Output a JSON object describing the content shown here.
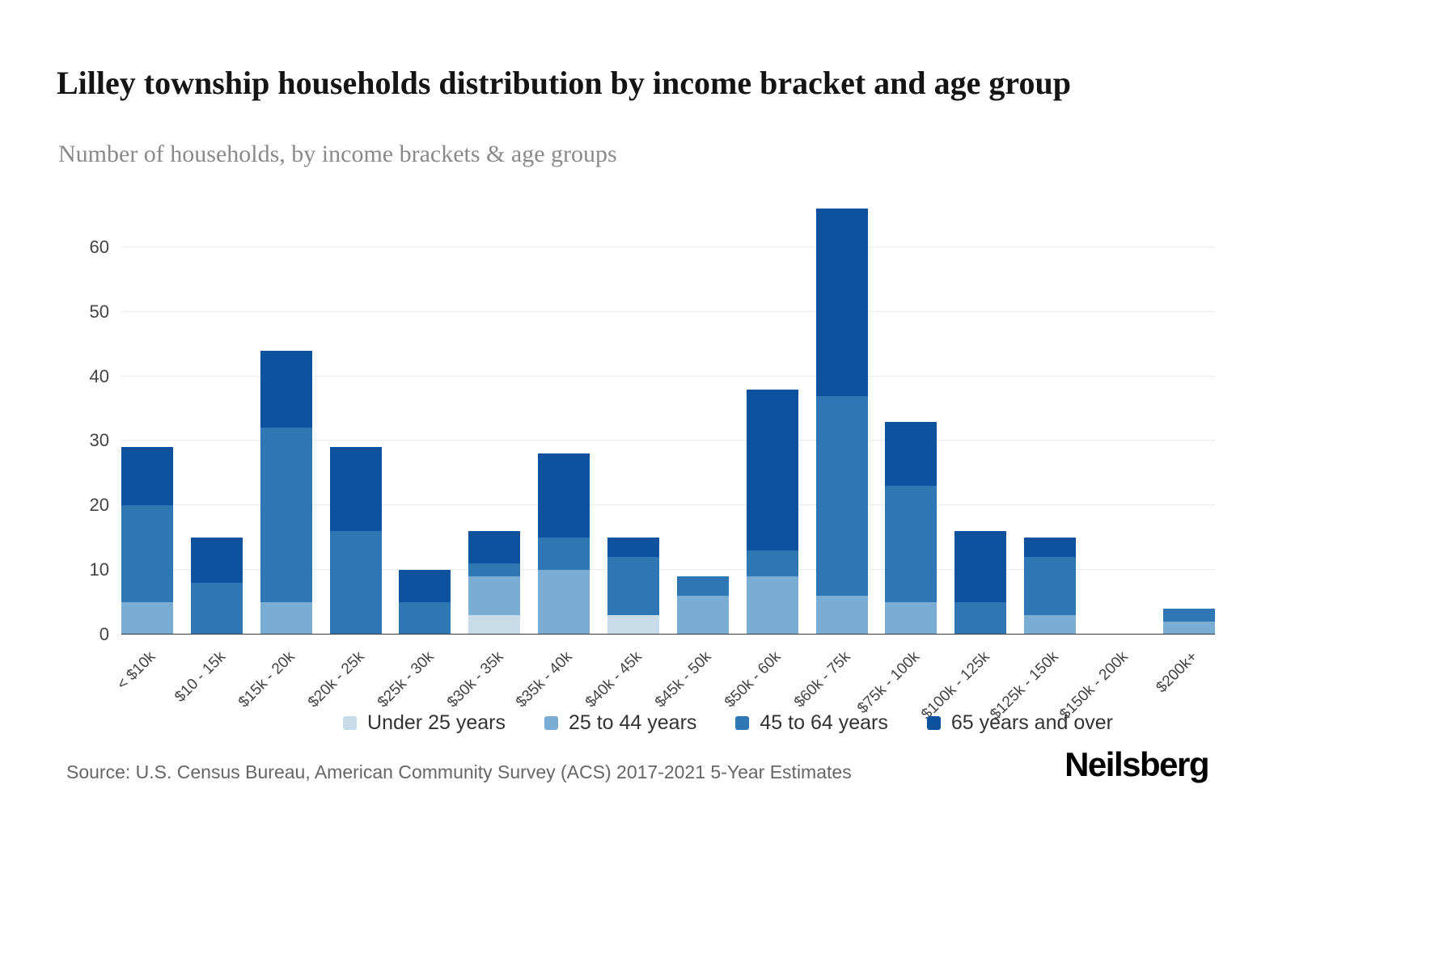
{
  "header": {
    "title": "Lilley township households distribution by income bracket and age group",
    "subtitle": "Number of households, by income brackets & age groups"
  },
  "footer": {
    "source": "Source: U.S. Census Bureau, American Community Survey (ACS) 2017-2021 5-Year Estimates",
    "brand": "Neilsberg"
  },
  "chart_data": {
    "type": "bar",
    "stacked": true,
    "title": "Lilley township households distribution by income bracket and age group",
    "subtitle": "Number of households, by income brackets & age groups",
    "xlabel": "",
    "ylabel": "",
    "grid": true,
    "legend_position": "bottom",
    "yticks": [
      0,
      10,
      20,
      30,
      40,
      50,
      60
    ],
    "ylim": [
      0,
      67
    ],
    "categories": [
      "< $10k",
      "$10 - 15k",
      "$15k - 20k",
      "$20k - 25k",
      "$25k - 30k",
      "$30k - 35k",
      "$35k - 40k",
      "$40k - 45k",
      "$45k - 50k",
      "$50k - 60k",
      "$60k - 75k",
      "$75k - 100k",
      "$100k - 125k",
      "$125k - 150k",
      "$150k - 200k",
      "$200k+"
    ],
    "series": [
      {
        "name": "Under 25 years",
        "color": "#c7dbe9",
        "values": [
          0,
          0,
          0,
          0,
          0,
          3,
          0,
          3,
          0,
          0,
          0,
          0,
          0,
          0,
          0,
          0
        ]
      },
      {
        "name": "25 to 44 years",
        "color": "#7aadd3",
        "values": [
          5,
          0,
          5,
          0,
          0,
          6,
          10,
          0,
          6,
          9,
          6,
          5,
          0,
          3,
          0,
          2
        ]
      },
      {
        "name": "45 to 64 years",
        "color": "#2f76b5",
        "values": [
          15,
          8,
          27,
          16,
          5,
          2,
          5,
          9,
          3,
          4,
          31,
          18,
          5,
          9,
          0,
          2
        ]
      },
      {
        "name": "65 years and over",
        "color": "#0d529e",
        "values": [
          9,
          7,
          12,
          13,
          5,
          5,
          13,
          3,
          0,
          25,
          29,
          10,
          11,
          3,
          0,
          0
        ]
      }
    ],
    "totals": [
      29,
      15,
      44,
      29,
      10,
      16,
      28,
      15,
      9,
      38,
      66,
      33,
      16,
      15,
      0,
      4
    ]
  }
}
